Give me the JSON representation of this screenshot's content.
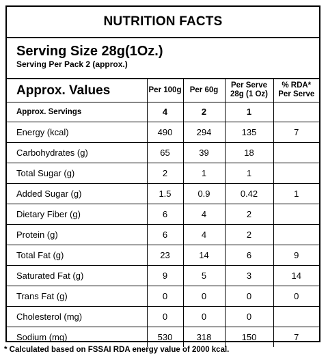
{
  "title": "NUTRITION FACTS",
  "serving_size": "Serving Size 28g(1Oz.)",
  "serving_per_pack": "Serving Per Pack 2 (approx.)",
  "table": {
    "heading": "Approx. Values",
    "columns": [
      "Per 100g",
      "Per 60g",
      "Per Serve\n28g (1 Oz)",
      "% RDA*\nPer Serve"
    ],
    "servings_row": {
      "label": "Approx. Servings",
      "values": [
        "4",
        "2",
        "1",
        ""
      ]
    },
    "rows": [
      {
        "label": "Energy (kcal)",
        "values": [
          "490",
          "294",
          "135",
          "7"
        ]
      },
      {
        "label": "Carbohydrates (g)",
        "values": [
          "65",
          "39",
          "18",
          ""
        ]
      },
      {
        "label": "Total Sugar (g)",
        "values": [
          "2",
          "1",
          "1",
          ""
        ]
      },
      {
        "label": "Added Sugar (g)",
        "values": [
          "1.5",
          "0.9",
          "0.42",
          "1"
        ]
      },
      {
        "label": "Dietary Fiber (g)",
        "values": [
          "6",
          "4",
          "2",
          ""
        ]
      },
      {
        "label": "Protein (g)",
        "values": [
          "6",
          "4",
          "2",
          ""
        ]
      },
      {
        "label": "Total Fat (g)",
        "values": [
          "23",
          "14",
          "6",
          "9"
        ]
      },
      {
        "label": "Saturated Fat (g)",
        "values": [
          "9",
          "5",
          "3",
          "14"
        ]
      },
      {
        "label": "Trans Fat (g)",
        "values": [
          "0",
          "0",
          "0",
          "0"
        ]
      },
      {
        "label": "Cholesterol (mg)",
        "values": [
          "0",
          "0",
          "0",
          ""
        ]
      },
      {
        "label": "Sodium (mg)",
        "values": [
          "530",
          "318",
          "150",
          "7"
        ]
      }
    ]
  },
  "footnote": "* Calculated based on FSSAI RDA energy value of 2000 kcal."
}
